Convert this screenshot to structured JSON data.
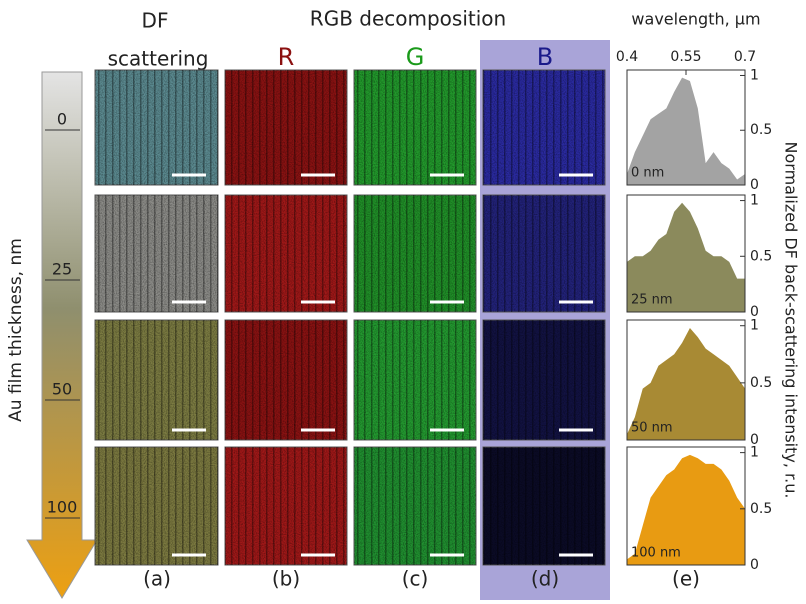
{
  "headers": {
    "df": "DF",
    "scattering": "scattering",
    "rgb": "RGB decomposition",
    "r": "R",
    "g": "G",
    "b": "B"
  },
  "arrow": {
    "label": "Au film thickness, nm",
    "ticks": [
      "0",
      "25",
      "50",
      "100"
    ]
  },
  "panel_labels": [
    "(a)",
    "(b)",
    "(c)",
    "(d)",
    "(e)"
  ],
  "spectra_ylabel": "Normalized DF back-scattering intensity, r.u.",
  "chart_data": [
    {
      "type": "area",
      "label": "0 nm",
      "color": "#a3a3a3",
      "xlabel": "wavelength, μm",
      "x": [
        0.4,
        0.42,
        0.44,
        0.46,
        0.48,
        0.5,
        0.52,
        0.54,
        0.56,
        0.58,
        0.6,
        0.62,
        0.64,
        0.66,
        0.68,
        0.7
      ],
      "values": [
        0.1,
        0.3,
        0.45,
        0.6,
        0.65,
        0.7,
        0.85,
        0.98,
        0.95,
        0.7,
        0.2,
        0.3,
        0.2,
        0.15,
        0.05,
        0.1
      ],
      "xlim": [
        0.4,
        0.7
      ],
      "xticks": [
        0.4,
        0.55,
        0.7
      ],
      "ylim": [
        0,
        1.05
      ],
      "yticks": [
        0,
        0.5,
        1
      ]
    },
    {
      "type": "area",
      "label": "25 nm",
      "color": "#8b8a5c",
      "x": [
        0.4,
        0.42,
        0.44,
        0.46,
        0.48,
        0.5,
        0.52,
        0.54,
        0.56,
        0.58,
        0.6,
        0.62,
        0.64,
        0.66,
        0.68,
        0.7
      ],
      "values": [
        0.45,
        0.5,
        0.5,
        0.55,
        0.65,
        0.7,
        0.9,
        0.98,
        0.9,
        0.75,
        0.55,
        0.5,
        0.5,
        0.45,
        0.3,
        0.3
      ],
      "xlim": [
        0.4,
        0.7
      ],
      "ylim": [
        0,
        1.05
      ],
      "yticks": [
        0,
        0.5,
        1
      ]
    },
    {
      "type": "area",
      "label": "50 nm",
      "color": "#a88a34",
      "x": [
        0.4,
        0.42,
        0.44,
        0.46,
        0.48,
        0.5,
        0.52,
        0.54,
        0.56,
        0.58,
        0.6,
        0.62,
        0.64,
        0.66,
        0.68,
        0.7
      ],
      "values": [
        0.05,
        0.2,
        0.45,
        0.5,
        0.65,
        0.7,
        0.75,
        0.85,
        0.98,
        0.9,
        0.8,
        0.75,
        0.7,
        0.65,
        0.55,
        0.45
      ],
      "xlim": [
        0.4,
        0.7
      ],
      "ylim": [
        0,
        1.05
      ],
      "yticks": [
        0,
        0.5,
        1
      ]
    },
    {
      "type": "area",
      "label": "100 nm",
      "color": "#e89b12",
      "x": [
        0.4,
        0.42,
        0.44,
        0.46,
        0.48,
        0.5,
        0.52,
        0.54,
        0.56,
        0.58,
        0.6,
        0.62,
        0.64,
        0.66,
        0.68,
        0.7
      ],
      "values": [
        0.05,
        0.1,
        0.35,
        0.6,
        0.7,
        0.8,
        0.85,
        0.95,
        0.98,
        0.95,
        0.9,
        0.9,
        0.85,
        0.75,
        0.6,
        0.5
      ],
      "xlim": [
        0.4,
        0.7
      ],
      "ylim": [
        0,
        1.05
      ],
      "yticks": [
        0,
        0.5,
        1
      ]
    }
  ]
}
